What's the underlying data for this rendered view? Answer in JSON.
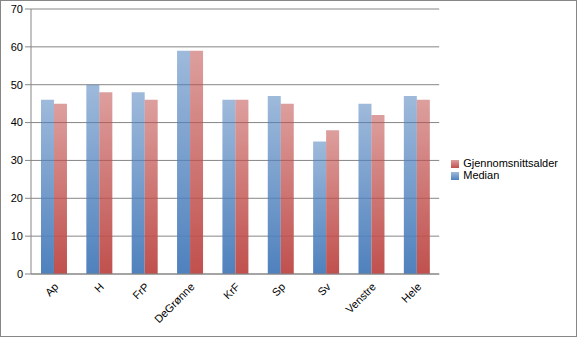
{
  "chart_data": {
    "type": "bar",
    "categories": [
      "Ap",
      "H",
      "FrP",
      "DeGrønne",
      "KrF",
      "Sp",
      "Sv",
      "Venstre",
      "Hele"
    ],
    "series": [
      {
        "name": "Median",
        "color": "#4f81bd",
        "values": [
          46,
          50,
          48,
          59,
          46,
          47,
          35,
          45,
          47
        ]
      },
      {
        "name": "Gjennomsnittsalder",
        "color": "#c0504d",
        "values": [
          45,
          48,
          46,
          59,
          46,
          45,
          38,
          42,
          46
        ]
      }
    ],
    "ylim": [
      0,
      70
    ],
    "yticks": [
      0,
      10,
      20,
      30,
      40,
      50,
      60,
      70
    ],
    "grid": true,
    "legend": "right"
  }
}
